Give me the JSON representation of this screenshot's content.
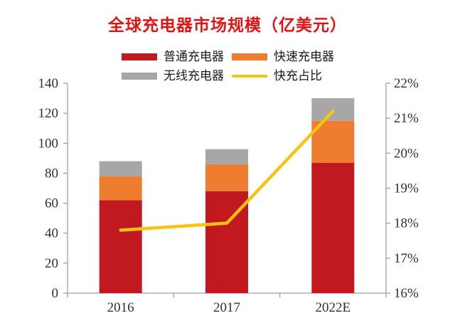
{
  "title": {
    "text": "全球充电器市场规模（亿美元）"
  },
  "legend": {
    "rows": [
      [
        {
          "label": "普通充电器",
          "series": 0
        },
        {
          "label": "快速充电器",
          "series": 1
        }
      ],
      [
        {
          "label": "无线充电器",
          "series": 2
        },
        {
          "label": "快充占比",
          "series": 3
        }
      ]
    ]
  },
  "chart_data": {
    "type": "bar",
    "subtype": "stacked-bar-with-line",
    "title": "全球充电器市场规模（亿美元）",
    "categories": [
      "2016",
      "2017",
      "2022E"
    ],
    "series": [
      {
        "name": "普通充电器",
        "type": "bar",
        "stack": true,
        "color": "#C2181F",
        "values": [
          62,
          68,
          87
        ]
      },
      {
        "name": "快速充电器",
        "type": "bar",
        "stack": true,
        "color": "#EE7D2F",
        "values": [
          16,
          18,
          28
        ]
      },
      {
        "name": "无线充电器",
        "type": "bar",
        "stack": true,
        "color": "#A7A7A7",
        "values": [
          10,
          10,
          15
        ]
      },
      {
        "name": "快充占比",
        "type": "line",
        "axis": "right",
        "unit": "%",
        "color": "#FDC211",
        "values": [
          17.8,
          18.0,
          21.2
        ]
      }
    ],
    "left_axis": {
      "min": 0,
      "max": 140,
      "step": 20,
      "tick_labels": [
        "0",
        "20",
        "40",
        "60",
        "80",
        "100",
        "120",
        "140"
      ]
    },
    "right_axis": {
      "min": 16,
      "max": 22,
      "step": 1,
      "tick_labels": [
        "16%",
        "17%",
        "18%",
        "19%",
        "20%",
        "21%",
        "22%"
      ]
    },
    "grid": false,
    "legend_position": "top"
  },
  "colors": {
    "title": "#E51212",
    "axis_line": "#A0A0A0",
    "tick_text": "#303030",
    "background": "#FFFFFF"
  }
}
